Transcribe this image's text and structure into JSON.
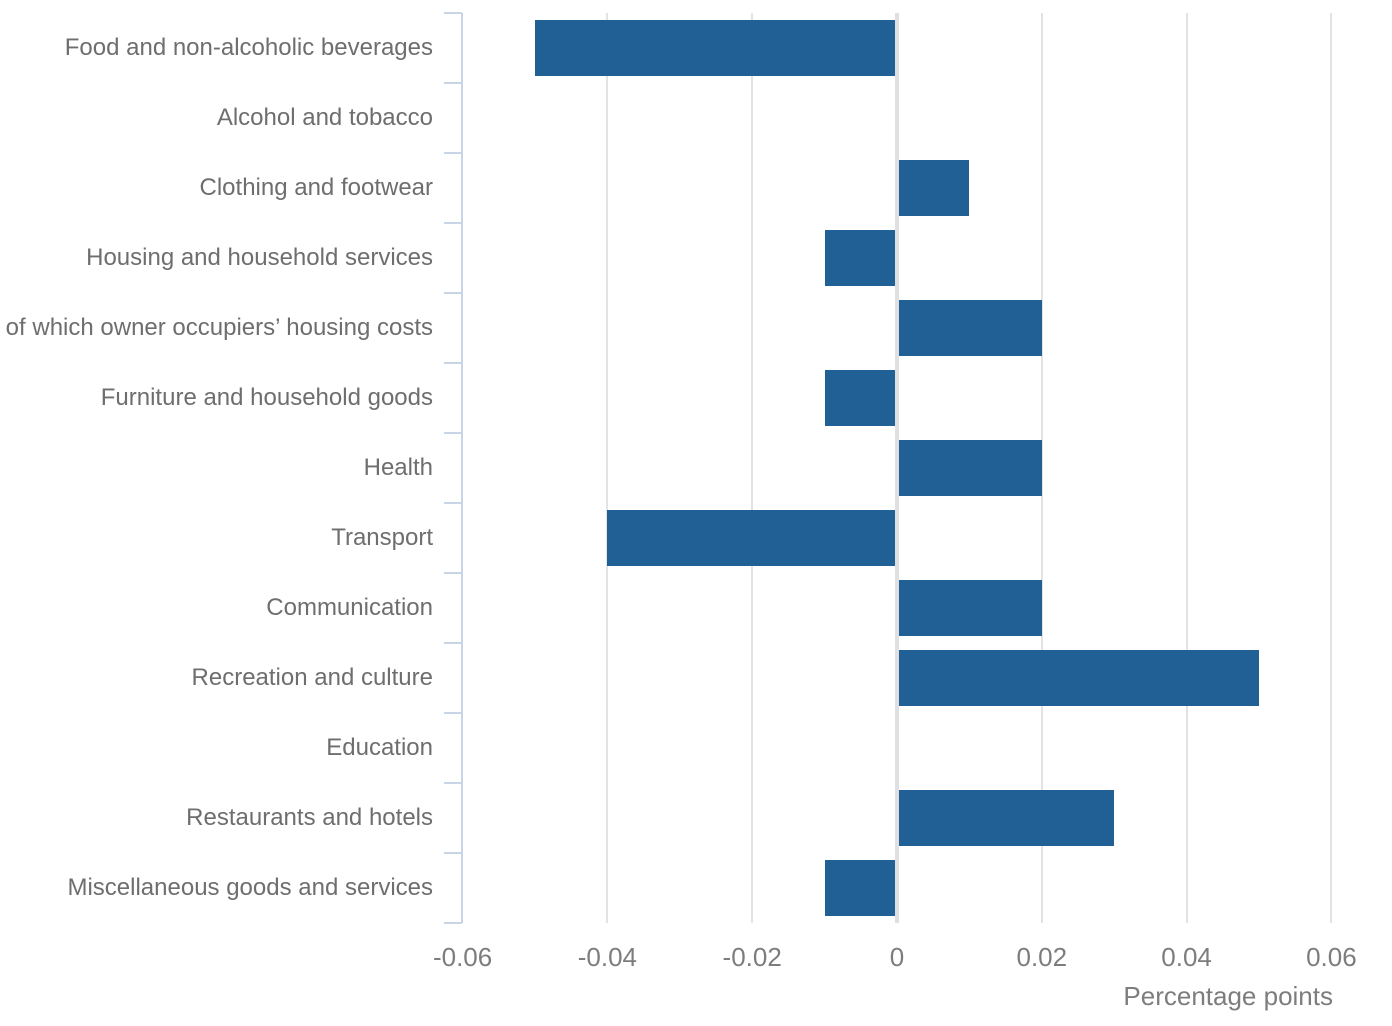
{
  "chart_data": {
    "type": "bar",
    "orientation": "horizontal",
    "title": "",
    "xlabel": "Percentage points",
    "ylabel": "",
    "categories": [
      "Food and non-alcoholic beverages",
      "Alcohol and tobacco",
      "Clothing and footwear",
      "Housing and household services",
      "of which owner occupiers’ housing costs",
      "Furniture and household goods",
      "Health",
      "Transport",
      "Communication",
      "Recreation and culture",
      "Education",
      "Restaurants and hotels",
      "Miscellaneous goods and services"
    ],
    "values": [
      -0.05,
      0,
      0.01,
      -0.01,
      0.02,
      -0.01,
      0.02,
      -0.04,
      0.02,
      0.05,
      0,
      0.03,
      -0.01
    ],
    "xticks": [
      -0.06,
      -0.04,
      -0.02,
      0,
      0.02,
      0.04,
      0.06
    ],
    "xtick_labels": [
      "-0.06",
      "-0.04",
      "-0.02",
      "0",
      "0.02",
      "0.04",
      "0.06"
    ],
    "xlim": [
      -0.0601,
      0.062
    ],
    "grid": "vertical-only",
    "legend": "none",
    "colors": {
      "bar": "#206095",
      "gridline": "#e3e3e3",
      "zero_line": "#e0e0e2",
      "axis": "#c9d4e6",
      "category_label": "#6e6e70",
      "tick_label": "#7d7d7d",
      "axis_title": "#7d7d7d",
      "background": "#ffffff"
    }
  }
}
